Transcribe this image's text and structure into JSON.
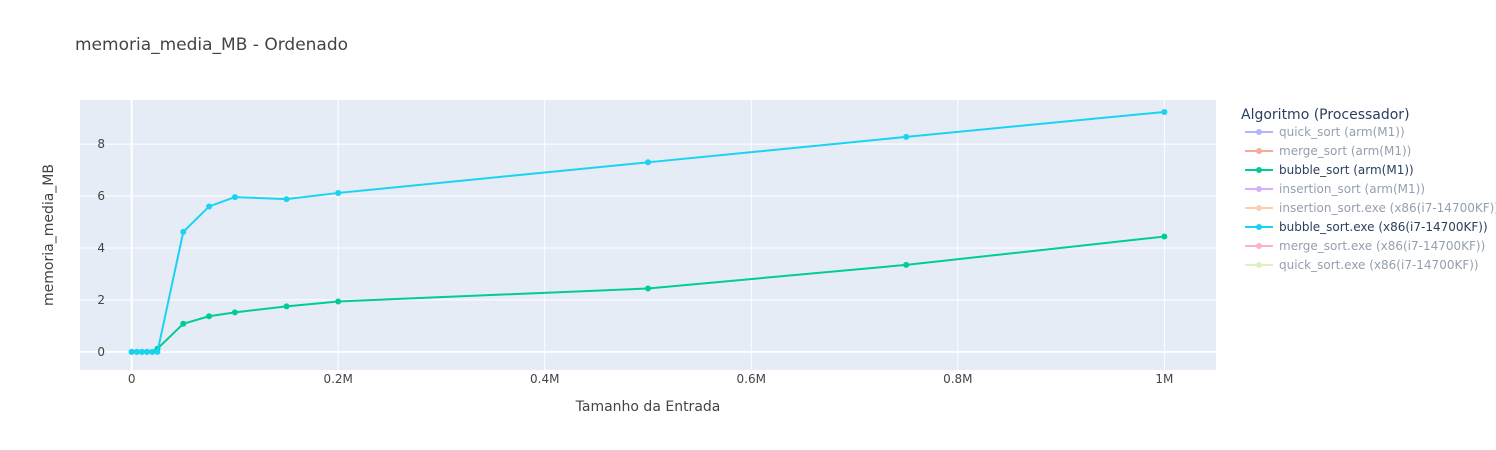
{
  "chart_data": {
    "type": "line",
    "title": "memoria_media_MB - Ordenado",
    "xlabel": "Tamanho da Entrada",
    "ylabel": "memoria_media_MB",
    "xlim": [
      -50000,
      1050000
    ],
    "ylim": [
      -0.7,
      9.7
    ],
    "x_ticks": [
      {
        "value": 0,
        "label": "0"
      },
      {
        "value": 200000,
        "label": "0.2M"
      },
      {
        "value": 400000,
        "label": "0.4M"
      },
      {
        "value": 600000,
        "label": "0.6M"
      },
      {
        "value": 800000,
        "label": "0.8M"
      },
      {
        "value": 1000000,
        "label": "1M"
      }
    ],
    "y_ticks": [
      {
        "value": 0,
        "label": "0"
      },
      {
        "value": 2,
        "label": "2"
      },
      {
        "value": 4,
        "label": "4"
      },
      {
        "value": 6,
        "label": "6"
      },
      {
        "value": 8,
        "label": "8"
      }
    ],
    "grid": true,
    "legend_title": "Algoritmo (Processador)",
    "legend_position": "right",
    "series": [
      {
        "name": "quick_sort (arm(M1))",
        "color": "#636efa",
        "visible": false,
        "x": [],
        "y": []
      },
      {
        "name": "merge_sort (arm(M1))",
        "color": "#ef553b",
        "visible": false,
        "x": [],
        "y": []
      },
      {
        "name": "bubble_sort (arm(M1))",
        "color": "#00cc96",
        "visible": true,
        "x": [
          0,
          5000,
          10000,
          15000,
          20000,
          25000,
          50000,
          75000,
          100000,
          150000,
          200000,
          500000,
          750000,
          1000000
        ],
        "y": [
          0,
          0,
          0,
          0,
          0,
          0.12,
          1.08,
          1.37,
          1.52,
          1.75,
          1.94,
          2.44,
          3.35,
          4.44
        ]
      },
      {
        "name": "insertion_sort (arm(M1))",
        "color": "#ab63fa",
        "visible": false,
        "x": [],
        "y": []
      },
      {
        "name": "insertion_sort.exe (x86(i7-14700KF))",
        "color": "#ffa15a",
        "visible": false,
        "x": [],
        "y": []
      },
      {
        "name": "bubble_sort.exe (x86(i7-14700KF))",
        "color": "#19d3f3",
        "visible": true,
        "x": [
          0,
          5000,
          10000,
          15000,
          20000,
          25000,
          50000,
          75000,
          100000,
          150000,
          200000,
          500000,
          750000,
          1000000
        ],
        "y": [
          0,
          0,
          0,
          0,
          0,
          0,
          4.62,
          5.6,
          5.96,
          5.88,
          6.12,
          7.3,
          8.28,
          9.24
        ]
      },
      {
        "name": "merge_sort.exe (x86(i7-14700KF))",
        "color": "#ff6692",
        "visible": false,
        "x": [],
        "y": []
      },
      {
        "name": "quick_sort.exe (x86(i7-14700KF))",
        "color": "#b6e880",
        "visible": false,
        "x": [],
        "y": []
      }
    ]
  }
}
